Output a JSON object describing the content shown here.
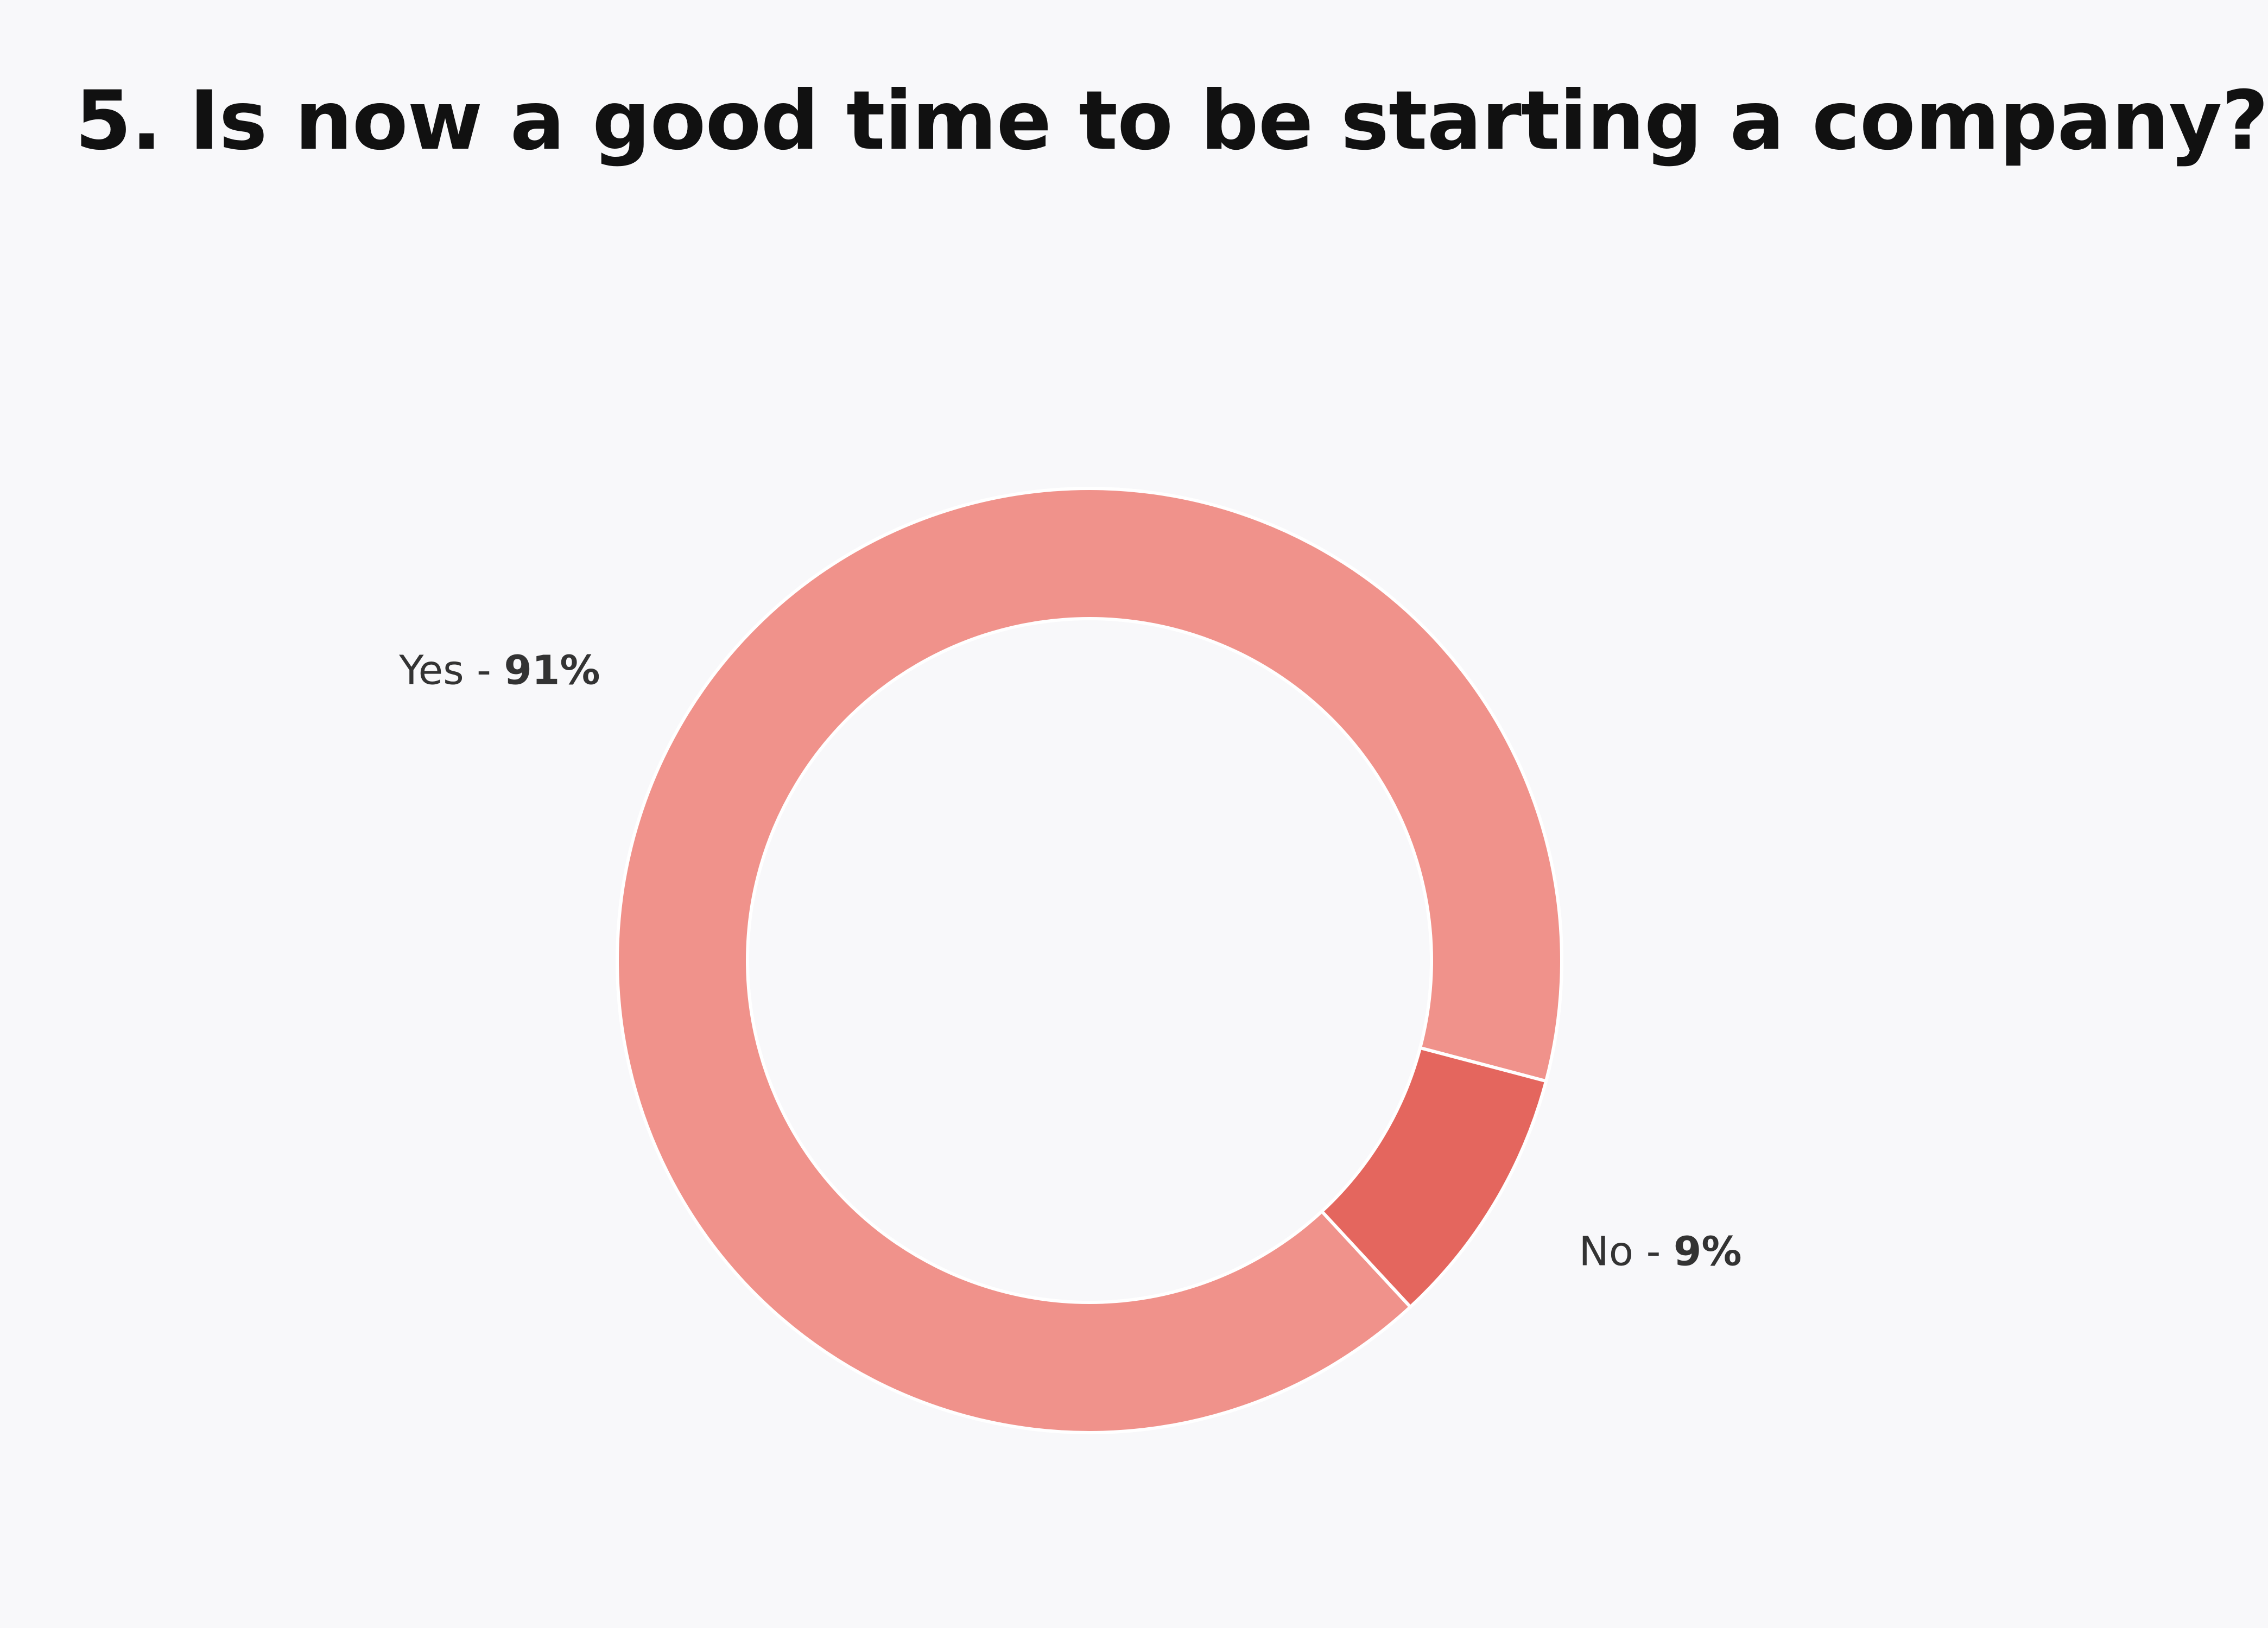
{
  "title": "5. Is now a good time to be starting a company?",
  "chart_data": {
    "type": "pie",
    "variant": "donut",
    "title": "5. Is now a good time to be starting a company?",
    "slices": [
      {
        "label": "Yes",
        "value": 91,
        "display": "91%",
        "color": "#f0928b"
      },
      {
        "label": "No",
        "value": 9,
        "display": "9%",
        "color": "#e4665e"
      }
    ],
    "separator": " - ",
    "legend": "none"
  }
}
